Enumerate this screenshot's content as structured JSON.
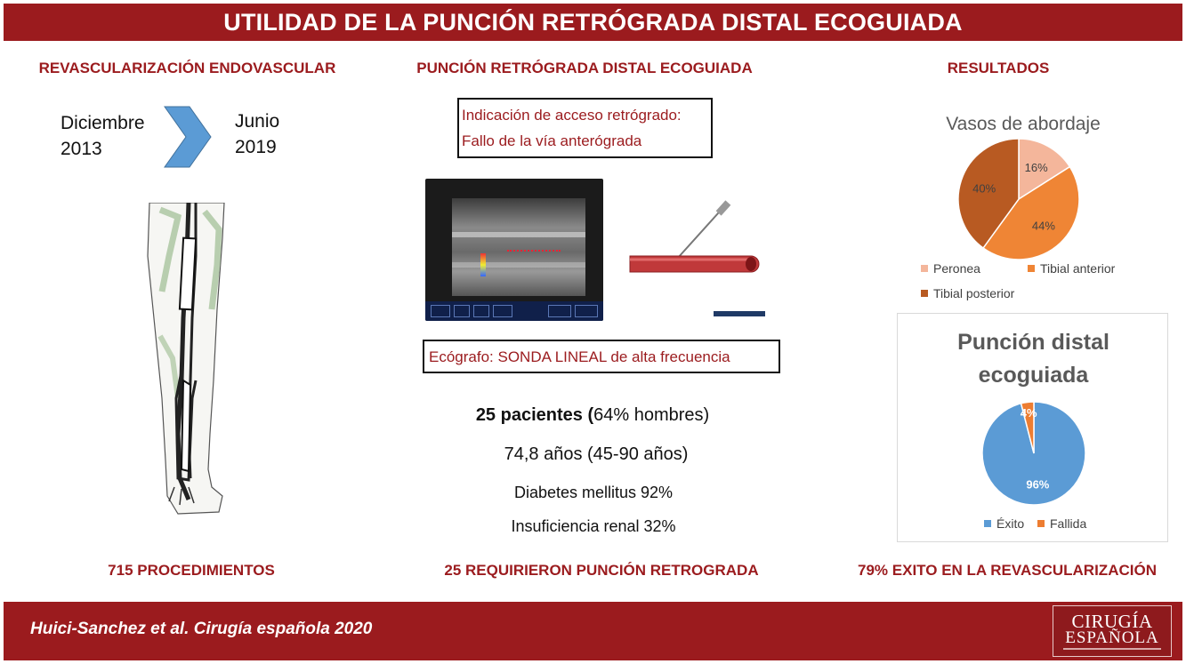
{
  "header": {
    "title": "UTILIDAD DE LA PUNCIÓN RETRÓGRADA DISTAL ECOGUIADA"
  },
  "left": {
    "heading": "REVASCULARIZACIÓN ENDOVASCULAR",
    "start_month": "Diciembre",
    "start_year": "2013",
    "end_month": "Junio",
    "end_year": "2019",
    "bottom": "715 PROCEDIMIENTOS"
  },
  "middle": {
    "heading": "PUNCIÓN RETRÓGRADA DISTAL ECOGUIADA",
    "indication_label": "Indicación de acceso retrógrado:",
    "indication_value": "Fallo de la vía anterógrada",
    "echo_label": "Ecógrafo:",
    "echo_value": " SONDA LINEAL de alta frecuencia",
    "patients_bold": "25 pacientes (",
    "patients_rest": "64% hombres)",
    "age": "74,8 años (45-90 años)",
    "diabetes": "Diabetes mellitus  92%",
    "renal": "Insuficiencia renal  32%",
    "bottom": "25 REQUIRIERON PUNCIÓN RETROGRADA"
  },
  "right": {
    "heading": "RESULTADOS",
    "bottom": "79% EXITO EN LA REVASCULARIZACIÓN"
  },
  "chart_data": [
    {
      "type": "pie",
      "title": "Vasos de abordaje",
      "categories": [
        "Peronea",
        "Tibial anterior",
        "Tibial posterior"
      ],
      "values": [
        16,
        44,
        40
      ],
      "labels": [
        "16%",
        "44%",
        "40%"
      ],
      "colors": [
        "#f4b69b",
        "#ef8535",
        "#b85a22"
      ],
      "legend_position": "bottom"
    },
    {
      "type": "pie",
      "title": "Punción distal ecoguiada",
      "title_lines": [
        "Punción distal",
        "ecoguiada"
      ],
      "categories": [
        "Éxito",
        "Fallida"
      ],
      "values": [
        96,
        4
      ],
      "labels": [
        "96%",
        "4%"
      ],
      "colors": [
        "#5b9bd5",
        "#ed7d31"
      ],
      "legend_position": "bottom"
    }
  ],
  "footer": {
    "citation": "Huici-Sanchez et al. Cirugía española 2020"
  },
  "logo": {
    "line1": "CIRUGÍA",
    "line2": "ESPAÑOLA"
  },
  "colors": {
    "accent": "#9b1b1e"
  },
  "icons": {
    "arrow": "chevron-right-icon",
    "leg": "leg-illustration",
    "needle": "needle-vessel-illustration"
  }
}
